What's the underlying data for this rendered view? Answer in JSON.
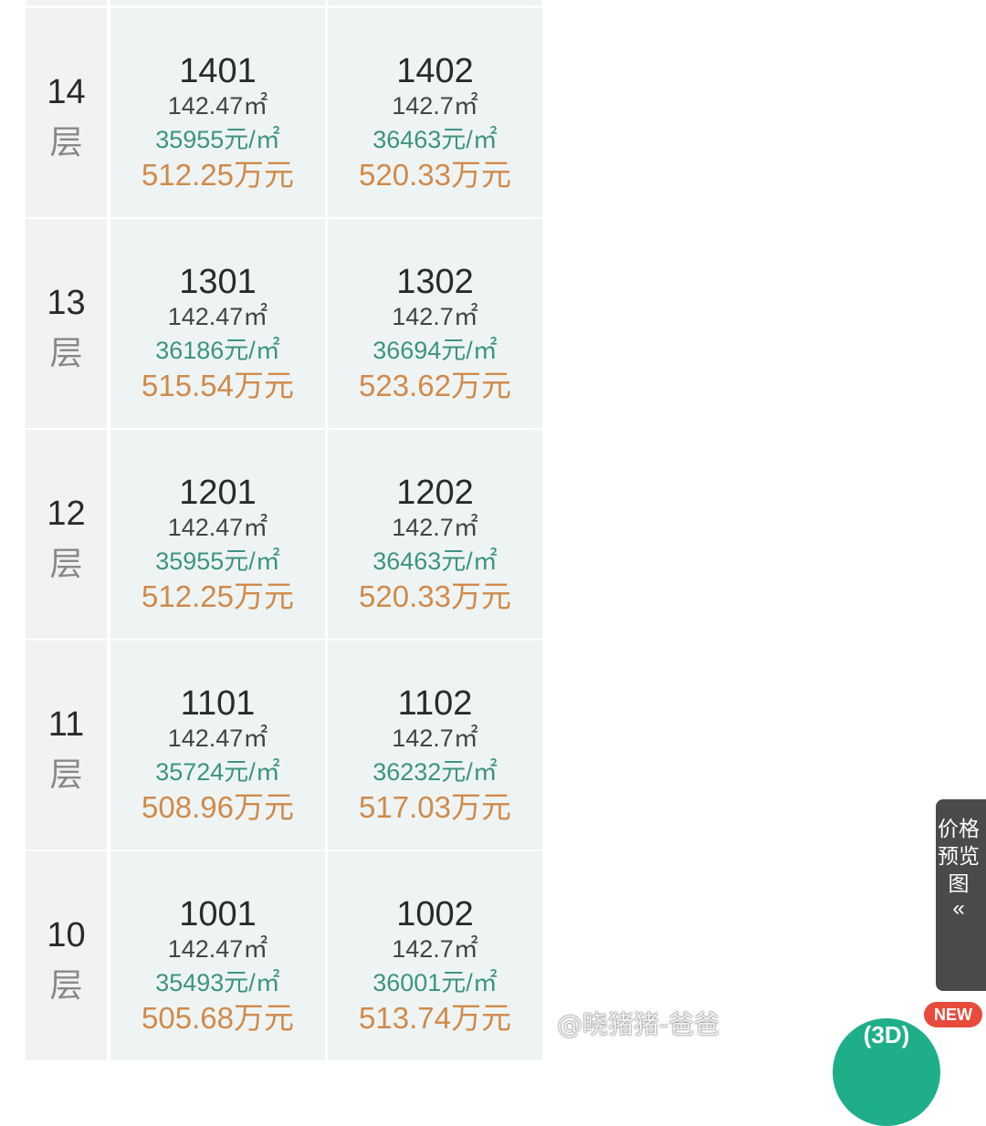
{
  "floors": [
    {
      "floor": "14",
      "unit_label": "层",
      "units": [
        {
          "room": "1401",
          "area": "142.47㎡",
          "unit_price": "35955元/㎡",
          "total": "512.25万元"
        },
        {
          "room": "1402",
          "area": "142.7㎡",
          "unit_price": "36463元/㎡",
          "total": "520.33万元"
        }
      ]
    },
    {
      "floor": "13",
      "unit_label": "层",
      "units": [
        {
          "room": "1301",
          "area": "142.47㎡",
          "unit_price": "36186元/㎡",
          "total": "515.54万元"
        },
        {
          "room": "1302",
          "area": "142.7㎡",
          "unit_price": "36694元/㎡",
          "total": "523.62万元"
        }
      ]
    },
    {
      "floor": "12",
      "unit_label": "层",
      "units": [
        {
          "room": "1201",
          "area": "142.47㎡",
          "unit_price": "35955元/㎡",
          "total": "512.25万元"
        },
        {
          "room": "1202",
          "area": "142.7㎡",
          "unit_price": "36463元/㎡",
          "total": "520.33万元"
        }
      ]
    },
    {
      "floor": "11",
      "unit_label": "层",
      "units": [
        {
          "room": "1101",
          "area": "142.47㎡",
          "unit_price": "35724元/㎡",
          "total": "508.96万元"
        },
        {
          "room": "1102",
          "area": "142.7㎡",
          "unit_price": "36232元/㎡",
          "total": "517.03万元"
        }
      ]
    },
    {
      "floor": "10",
      "unit_label": "层",
      "units": [
        {
          "room": "1001",
          "area": "142.47㎡",
          "unit_price": "35493元/㎡",
          "total": "505.68万元"
        },
        {
          "room": "1002",
          "area": "142.7㎡",
          "unit_price": "36001元/㎡",
          "total": "513.74万元"
        }
      ]
    }
  ],
  "side_panel": {
    "label": "价格预览图",
    "chevron": "«"
  },
  "fab": {
    "label": "(3D)",
    "badge": "NEW"
  },
  "watermark": "@晓猪猪-爸爸",
  "colors": {
    "unit_price": "#3d9480",
    "total_price": "#d08a4a",
    "floor_bg": "#f2f2f2",
    "cell_bg": "#eef4f4"
  }
}
